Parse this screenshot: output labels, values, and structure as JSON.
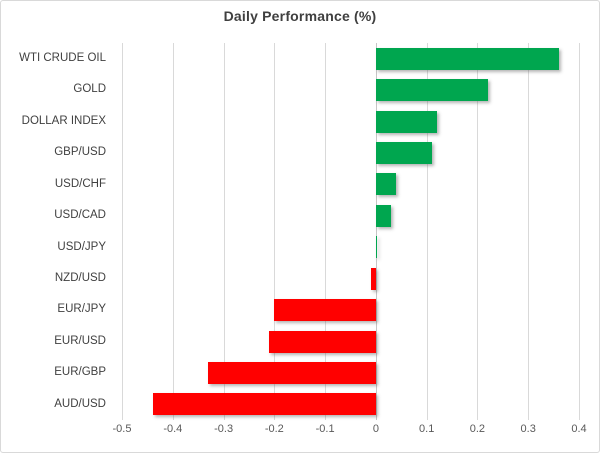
{
  "chart_data": {
    "type": "bar",
    "orientation": "horizontal",
    "title": "Daily Performance (%)",
    "categories": [
      "WTI CRUDE OIL",
      "GOLD",
      "DOLLAR INDEX",
      "GBP/USD",
      "USD/CHF",
      "USD/CAD",
      "USD/JPY",
      "NZD/USD",
      "EUR/JPY",
      "EUR/USD",
      "EUR/GBP",
      "AUD/USD"
    ],
    "values": [
      0.36,
      0.22,
      0.12,
      0.11,
      0.04,
      0.03,
      0.0,
      -0.01,
      -0.2,
      -0.21,
      -0.33,
      -0.44
    ],
    "xlabel": "",
    "ylabel": "",
    "xlim": [
      -0.5,
      0.4
    ],
    "x_tick_values": [
      -0.5,
      -0.4,
      -0.3,
      -0.2,
      -0.1,
      0,
      0.1,
      0.2,
      0.3,
      0.4
    ],
    "x_tick_labels": [
      "-0.5",
      "-0.4",
      "-0.3",
      "-0.2",
      "-0.1",
      "0",
      "0.1",
      "0.2",
      "0.3",
      "0.4"
    ],
    "grid": true,
    "legend_position": "none",
    "colors": {
      "positive_bar": "#00A64F",
      "negative_bar": "#FF0000",
      "gridline": "#D9D9D9",
      "zero_line": "#C6C6C6",
      "title_text": "#3F3F3F",
      "category_text": "#404040",
      "tick_text": "#595959",
      "frame_border": "#D9D9D9",
      "background": "#FFFFFF"
    }
  }
}
